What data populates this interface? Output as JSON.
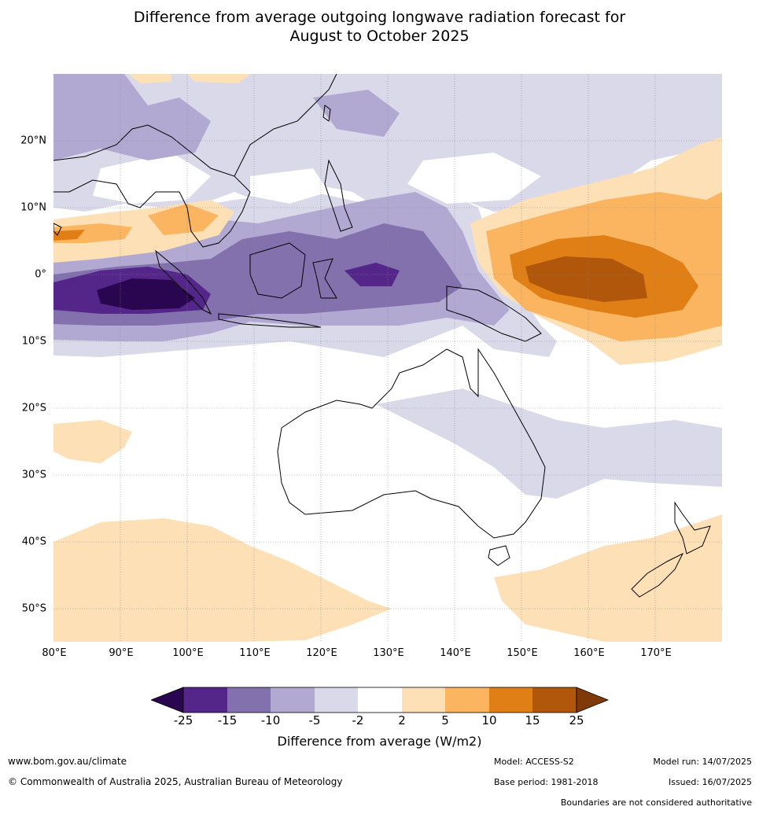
{
  "title": {
    "line1": "Difference from average outgoing longwave radiation forecast for",
    "line2": "August to October 2025"
  },
  "map": {
    "lat_labels": [
      "20°N",
      "10°N",
      "0°",
      "10°S",
      "20°S",
      "30°S",
      "40°S",
      "50°S"
    ],
    "lon_labels": [
      "80°E",
      "90°E",
      "100°E",
      "110°E",
      "120°E",
      "130°E",
      "140°E",
      "150°E",
      "160°E",
      "170°E"
    ],
    "extent": {
      "lon_min": 80,
      "lon_max": 180,
      "lat_min": -55,
      "lat_max": 30
    }
  },
  "colorbar": {
    "label": "Difference from average (W/m2)",
    "ticks": [
      "-25",
      "-15",
      "-10",
      "-5",
      "-2",
      "2",
      "5",
      "10",
      "15",
      "25"
    ],
    "colors": {
      "lt_-25": "#2a0650",
      "-25_-15": "#54268a",
      "-15_-10": "#8271ad",
      "-10_-5": "#b1a9d1",
      "-5_-2": "#d9d9ea",
      "-2_2": "#ffffff",
      "2_5": "#fde0b6",
      "5_10": "#fbb45f",
      "10_15": "#e17f17",
      "15_25": "#b0570c",
      "gt_25": "#7f3a08"
    }
  },
  "footer": {
    "website": "www.bom.gov.au/climate",
    "copyright": "© Commonwealth of Australia 2025, Australian Bureau of Meteorology",
    "model": "Model: ACCESS-S2",
    "base_period": "Base period: 1981-2018",
    "model_run": "Model run: 14/07/2025",
    "issued": "Issued: 16/07/2025",
    "disclaimer": "Boundaries are not considered authoritative"
  }
}
